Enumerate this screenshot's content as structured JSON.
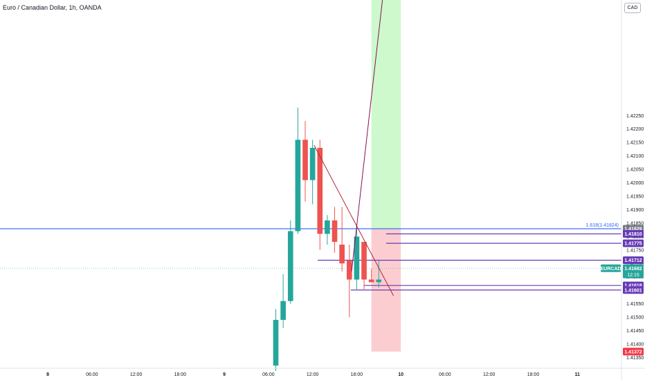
{
  "header": {
    "title": "Euro / Canadian Dollar, 1h, OANDA",
    "currency": "CAD"
  },
  "chart_data": {
    "type": "candlestick",
    "symbol": "EURCAD",
    "ylim": [
      1.4131,
      1.4268
    ],
    "y_ticks": [
      1.4135,
      1.414,
      1.4145,
      1.415,
      1.4155,
      1.416,
      1.4165,
      1.417,
      1.4175,
      1.418,
      1.4185,
      1.419,
      1.4195,
      1.42,
      1.4205,
      1.421,
      1.4215,
      1.422,
      1.4225
    ],
    "y_tick_labels": [
      "1.41350",
      "1.41400",
      "1.41450",
      "1.41500",
      "1.41550",
      "1.41600",
      "1.41650",
      "1.41700",
      "1.41750",
      "1.41800",
      "1.41850",
      "1.41900",
      "1.41950",
      "1.42000",
      "1.42050",
      "1.42100",
      "1.42150",
      "1.42200",
      "1.42250"
    ],
    "x_ticks": [
      {
        "label": "8",
        "bold": true
      },
      {
        "label": "06:00",
        "bold": false
      },
      {
        "label": "12:00",
        "bold": false
      },
      {
        "label": "18:00",
        "bold": false
      },
      {
        "label": "9",
        "bold": true
      },
      {
        "label": "06:00",
        "bold": false
      },
      {
        "label": "12:00",
        "bold": false
      },
      {
        "label": "18:00",
        "bold": false
      },
      {
        "label": "10",
        "bold": true
      },
      {
        "label": "06:00",
        "bold": false
      },
      {
        "label": "12:00",
        "bold": false
      },
      {
        "label": "18:00",
        "bold": false
      },
      {
        "label": "11",
        "bold": true
      }
    ],
    "x_tick_hours": [
      0,
      6,
      12,
      18,
      24,
      30,
      36,
      42,
      48,
      54,
      60,
      66,
      72
    ],
    "xlim_hours": [
      -6.5,
      78
    ],
    "candles": [
      {
        "h": 31,
        "o": 1.4132,
        "hi": 1.4153,
        "lo": 1.413,
        "c": 1.4149
      },
      {
        "h": 32,
        "o": 1.4149,
        "hi": 1.4166,
        "lo": 1.4146,
        "c": 1.4156
      },
      {
        "h": 33,
        "o": 1.4156,
        "hi": 1.4186,
        "lo": 1.4155,
        "c": 1.4182
      },
      {
        "h": 34,
        "o": 1.4182,
        "hi": 1.4228,
        "lo": 1.4181,
        "c": 1.4216
      },
      {
        "h": 35,
        "o": 1.4216,
        "hi": 1.4223,
        "lo": 1.4193,
        "c": 1.4201
      },
      {
        "h": 36,
        "o": 1.4201,
        "hi": 1.4216,
        "lo": 1.4192,
        "c": 1.4213
      },
      {
        "h": 37,
        "o": 1.4213,
        "hi": 1.4216,
        "lo": 1.4175,
        "c": 1.4181
      },
      {
        "h": 38,
        "o": 1.4181,
        "hi": 1.4188,
        "lo": 1.4177,
        "c": 1.4186
      },
      {
        "h": 39,
        "o": 1.4186,
        "hi": 1.4191,
        "lo": 1.4174,
        "c": 1.4178
      },
      {
        "h": 40,
        "o": 1.4177,
        "hi": 1.4191,
        "lo": 1.4167,
        "c": 1.417
      },
      {
        "h": 41,
        "o": 1.4171,
        "hi": 1.4177,
        "lo": 1.415,
        "c": 1.4164
      },
      {
        "h": 42,
        "o": 1.4164,
        "hi": 1.4184,
        "lo": 1.416,
        "c": 1.418
      },
      {
        "h": 43,
        "o": 1.4178,
        "hi": 1.4178,
        "lo": 1.416,
        "c": 1.4164
      },
      {
        "h": 44,
        "o": 1.4164,
        "hi": 1.4168,
        "lo": 1.4163,
        "c": 1.4163
      },
      {
        "h": 45,
        "o": 1.4163,
        "hi": 1.4171,
        "lo": 1.4161,
        "c": 1.4164
      }
    ],
    "horizontal_lines": [
      {
        "price": 1.41829,
        "label": "1.41829",
        "color": "#2962ff",
        "from_hour": -6.5,
        "fib_label": "1.618(1.41824)",
        "tag_color": "#787b86"
      },
      {
        "price": 1.4181,
        "label": "1.41810",
        "color": "#673ab7",
        "from_hour": 46,
        "tag_color": "#673ab7"
      },
      {
        "price": 1.41775,
        "label": "1.41775",
        "color": "#673ab7",
        "from_hour": 46,
        "tag_color": "#673ab7"
      },
      {
        "price": 1.41712,
        "label": "1.41712",
        "color": "#673ab7",
        "from_hour": 36.7,
        "tag_color": "#673ab7"
      },
      {
        "price": 1.41618,
        "label": "1.41618",
        "color": "#673ab7",
        "from_hour": 43,
        "tag_color": "#673ab7"
      },
      {
        "price": 1.41601,
        "label": "1.41601",
        "color": "#673ab7",
        "from_hour": 41.2,
        "tag_color": "#673ab7"
      }
    ],
    "current_price": {
      "price": 1.41682,
      "label": "1.41682",
      "symbol": "EURCAD",
      "countdown": "12:15",
      "color": "#26a69a"
    },
    "stop_level": {
      "price": 1.41372,
      "label": "1.41372",
      "color": "#f23645"
    },
    "position_box": {
      "from_hour": 44,
      "to_hour": 48,
      "entry": 1.41829,
      "target": 1.4268,
      "stop": 1.41372
    },
    "trend_lines": [
      {
        "points": [
          [
            36.2,
            1.4214
          ],
          [
            47,
            1.4158
          ]
        ],
        "color": "#b22833"
      },
      {
        "points": [
          [
            41.3,
            1.4167
          ],
          [
            45.5,
            1.4268
          ]
        ],
        "color": "#880e4f"
      }
    ],
    "colors": {
      "up": "#26a69a",
      "down": "#ef5350"
    }
  }
}
